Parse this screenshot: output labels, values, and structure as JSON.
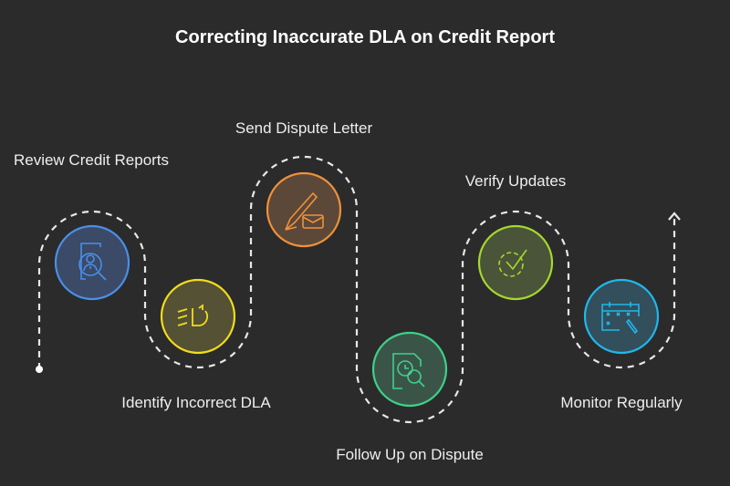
{
  "title": "Correcting Inaccurate DLA on Credit Report",
  "steps": [
    {
      "label": "Review Credit Reports",
      "icon": "user-search-document-icon",
      "color": "#4a8fe8",
      "fill": "#3b4a66"
    },
    {
      "label": "Identify Incorrect DLA",
      "icon": "headlight-refresh-icon",
      "color": "#f2dc1c",
      "fill": "#555134"
    },
    {
      "label": "Send Dispute Letter",
      "icon": "pencil-envelope-icon",
      "color": "#f0913a",
      "fill": "#5c4838"
    },
    {
      "label": "Follow Up on Dispute",
      "icon": "document-clock-search-icon",
      "color": "#3fd08a",
      "fill": "#3a5548"
    },
    {
      "label": "Verify Updates",
      "icon": "gear-check-icon",
      "color": "#a6d82c",
      "fill": "#4a5438"
    },
    {
      "label": "Monitor Regularly",
      "icon": "calendar-pen-icon",
      "color": "#1fb8ec",
      "fill": "#334f5c"
    }
  ]
}
